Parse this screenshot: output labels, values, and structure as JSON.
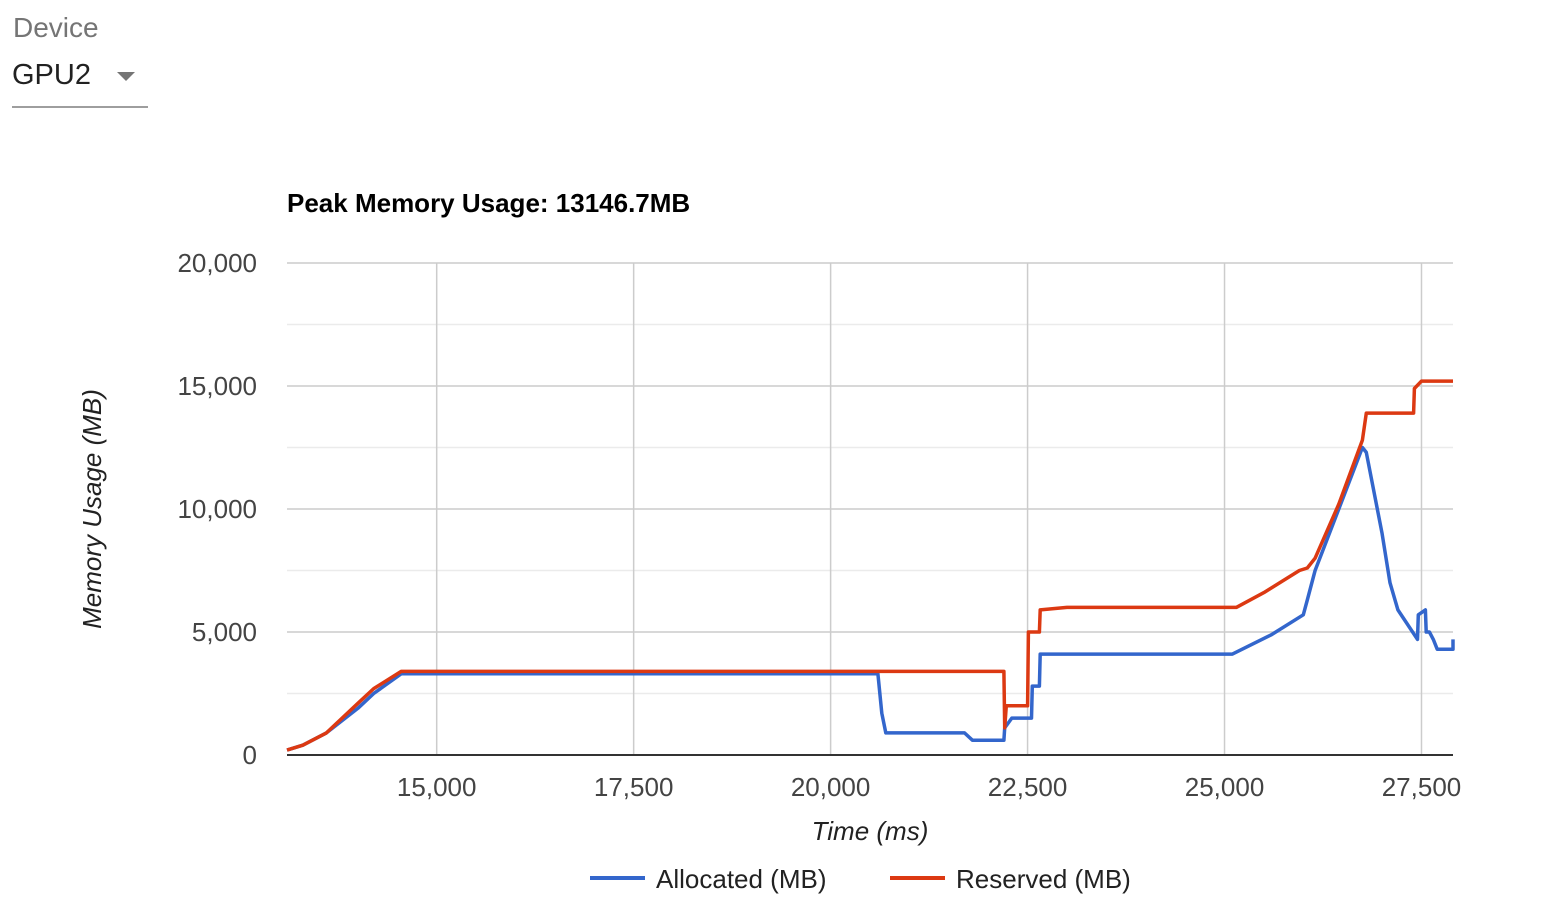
{
  "device": {
    "label": "Device",
    "selected": "GPU2"
  },
  "chart_data": {
    "type": "line",
    "title": "Peak Memory Usage: 13146.7MB",
    "xlabel": "Time (ms)",
    "ylabel": "Memory Usage (MB)",
    "xlim": [
      13100,
      27900
    ],
    "ylim": [
      0,
      20000
    ],
    "xticks": [
      15000,
      17500,
      20000,
      22500,
      25000,
      27500
    ],
    "xtick_labels": [
      "15,000",
      "17,500",
      "20,000",
      "22,500",
      "25,000",
      "27,500"
    ],
    "yticks": [
      0,
      5000,
      10000,
      15000,
      20000
    ],
    "ytick_labels": [
      "0",
      "5,000",
      "10,000",
      "15,000",
      "20,000"
    ],
    "grid": true,
    "legend_position": "bottom",
    "series": [
      {
        "name": "Allocated (MB)",
        "color": "#3366cc",
        "points": [
          [
            13100,
            200
          ],
          [
            13300,
            400
          ],
          [
            13600,
            900
          ],
          [
            14000,
            1900
          ],
          [
            14200,
            2500
          ],
          [
            14550,
            3300
          ],
          [
            20600,
            3300
          ],
          [
            20650,
            1700
          ],
          [
            20700,
            900
          ],
          [
            21700,
            900
          ],
          [
            21800,
            600
          ],
          [
            22200,
            600
          ],
          [
            22210,
            1100
          ],
          [
            22300,
            1500
          ],
          [
            22550,
            1500
          ],
          [
            22560,
            2800
          ],
          [
            22650,
            2800
          ],
          [
            22660,
            4100
          ],
          [
            25100,
            4100
          ],
          [
            25600,
            4900
          ],
          [
            26000,
            5700
          ],
          [
            26050,
            6300
          ],
          [
            26150,
            7500
          ],
          [
            26450,
            10000
          ],
          [
            26750,
            12500
          ],
          [
            26800,
            12300
          ],
          [
            27000,
            9000
          ],
          [
            27100,
            7000
          ],
          [
            27200,
            5900
          ],
          [
            27450,
            4700
          ],
          [
            27460,
            5700
          ],
          [
            27550,
            5900
          ],
          [
            27560,
            5000
          ],
          [
            27600,
            5000
          ],
          [
            27650,
            4700
          ],
          [
            27700,
            4300
          ],
          [
            27900,
            4300
          ],
          [
            27900,
            4700
          ]
        ]
      },
      {
        "name": "Reserved (MB)",
        "color": "#dc3912",
        "points": [
          [
            13100,
            200
          ],
          [
            13300,
            400
          ],
          [
            13600,
            900
          ],
          [
            14000,
            2100
          ],
          [
            14200,
            2700
          ],
          [
            14550,
            3400
          ],
          [
            22200,
            3400
          ],
          [
            22210,
            1100
          ],
          [
            22230,
            2000
          ],
          [
            22500,
            2000
          ],
          [
            22510,
            5000
          ],
          [
            22650,
            5000
          ],
          [
            22660,
            5900
          ],
          [
            23000,
            6000
          ],
          [
            25150,
            6000
          ],
          [
            25500,
            6600
          ],
          [
            25950,
            7500
          ],
          [
            26050,
            7600
          ],
          [
            26150,
            8000
          ],
          [
            26450,
            10200
          ],
          [
            26750,
            12800
          ],
          [
            26800,
            13900
          ],
          [
            27400,
            13900
          ],
          [
            27410,
            14900
          ],
          [
            27500,
            15200
          ],
          [
            27900,
            15200
          ]
        ]
      }
    ]
  }
}
